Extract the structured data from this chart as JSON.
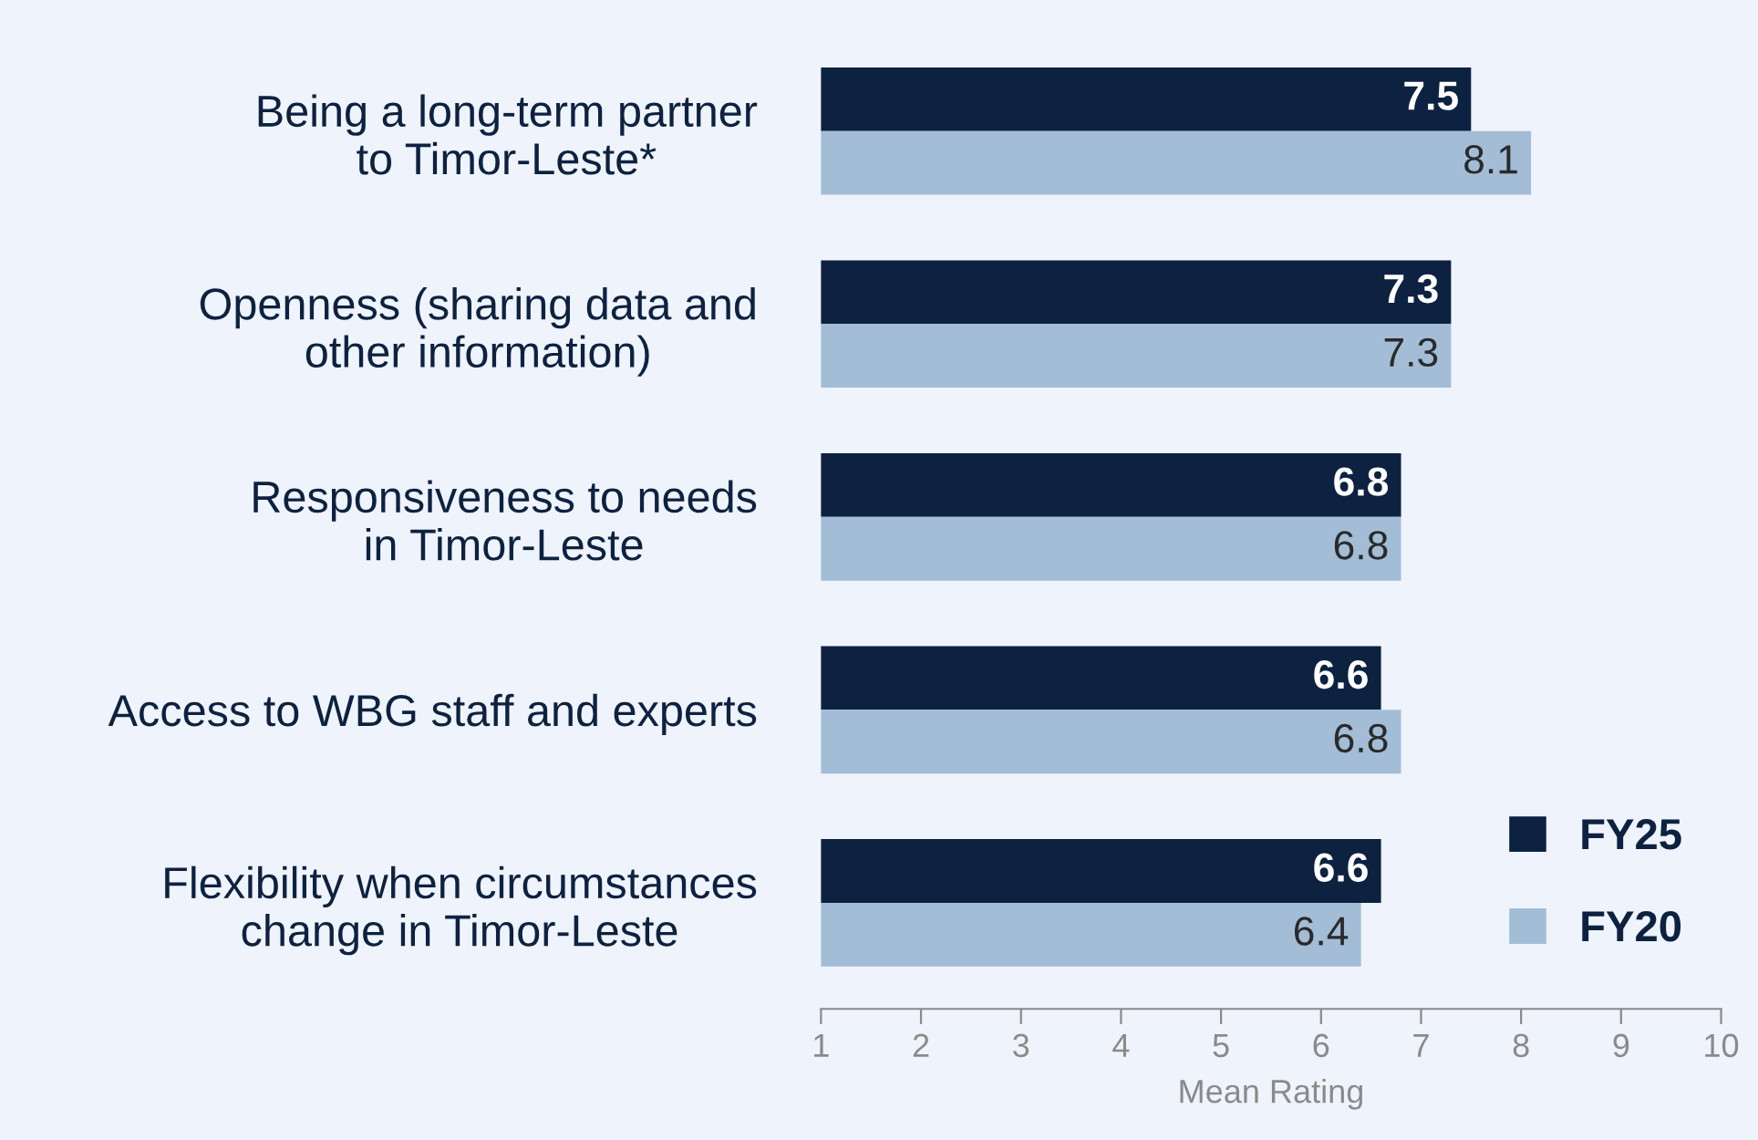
{
  "chart_data": {
    "type": "bar",
    "orientation": "horizontal",
    "xlabel": "Mean Rating",
    "categories": [
      "Being a long-term partner\nto Timor-Leste*",
      "Openness (sharing data and\nother information)",
      "Responsiveness to needs\nin Timor-Leste",
      "Access to WBG staff and experts",
      "Flexibility when circumstances\nchange in Timor-Leste"
    ],
    "series": [
      {
        "name": "FY25",
        "color": "#0d2240",
        "values": [
          7.5,
          7.3,
          6.8,
          6.6,
          6.6
        ]
      },
      {
        "name": "FY20",
        "color": "#a3bdd6",
        "values": [
          8.1,
          7.3,
          6.8,
          6.8,
          6.4
        ]
      }
    ],
    "xlim": [
      1,
      10
    ],
    "xticks": [
      1,
      2,
      3,
      4,
      5,
      6,
      7,
      8,
      9,
      10
    ],
    "data_labels": true,
    "grid": false,
    "legend": "bottom right"
  }
}
